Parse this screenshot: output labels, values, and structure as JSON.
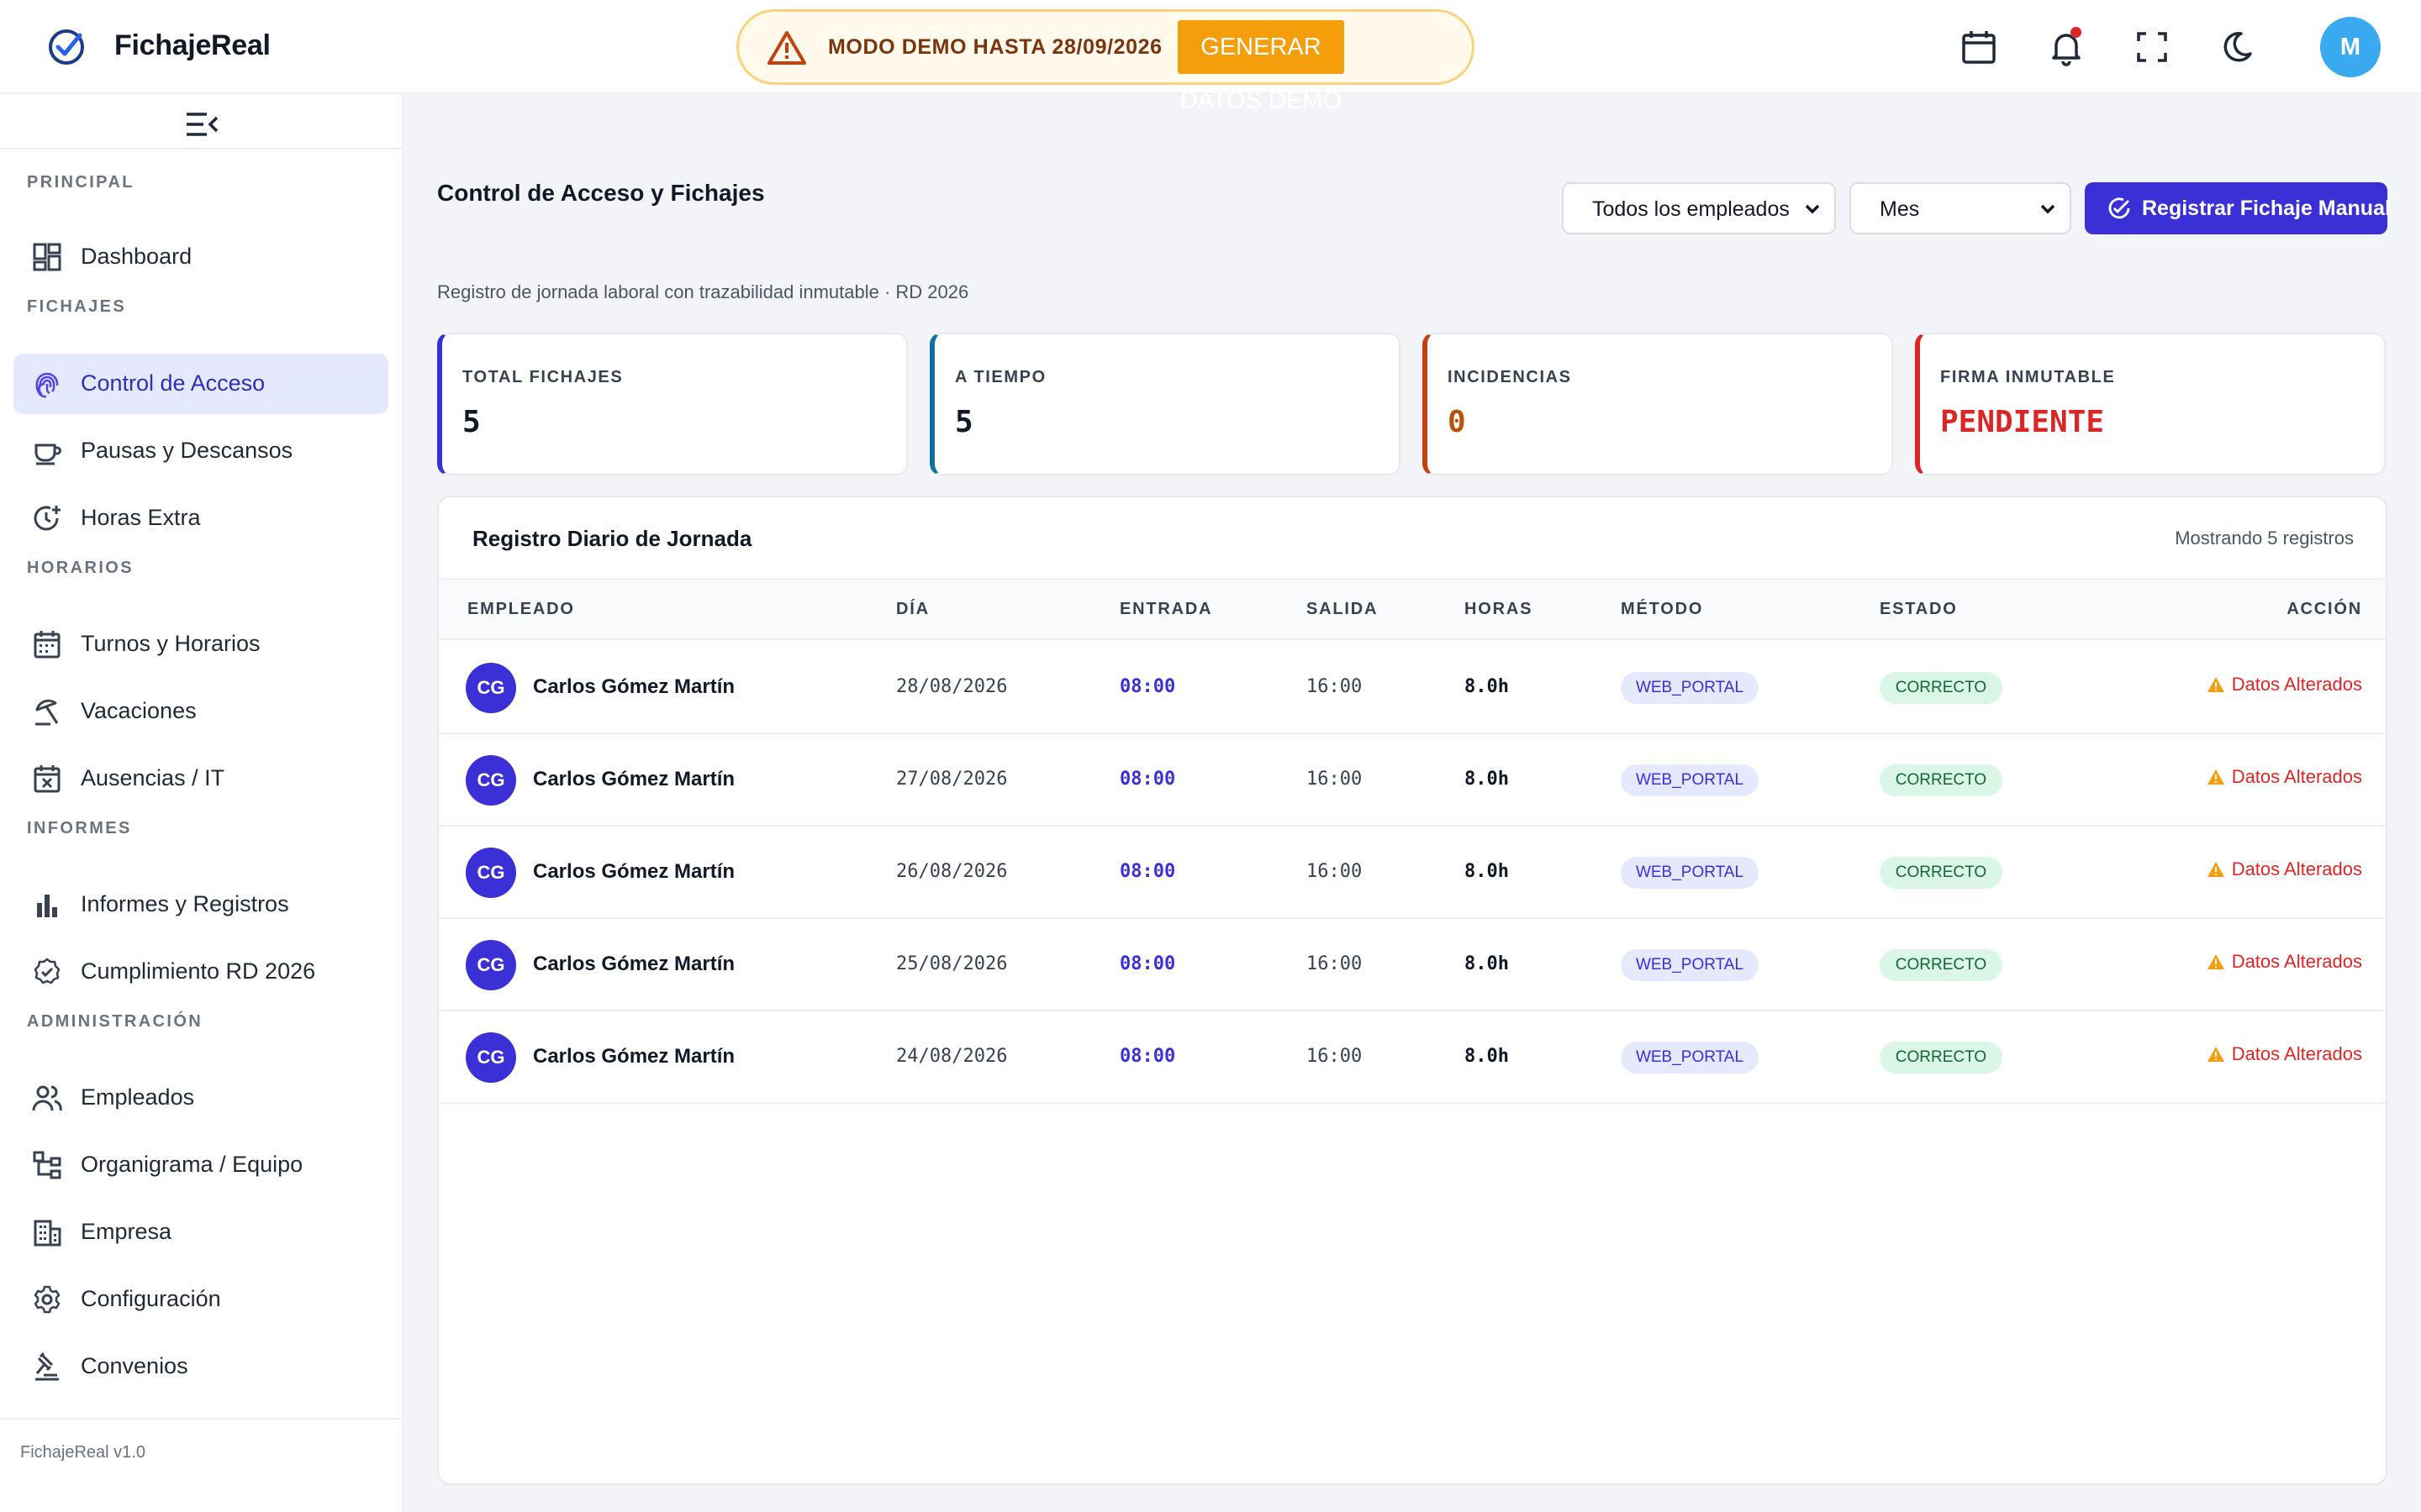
{
  "header": {
    "app_name": "FichajeReal",
    "demo_banner_text": "MODO DEMO HASTA 28/09/2026",
    "demo_button_label": "GENERAR DATOS DEMO",
    "avatar_initial": "M",
    "icons": [
      "calendar-icon",
      "bell-icon",
      "fullscreen-icon",
      "moon-icon"
    ]
  },
  "sidebar": {
    "sections": [
      {
        "label": "PRINCIPAL",
        "items": [
          {
            "label": "Dashboard",
            "icon": "dashboard-icon"
          }
        ]
      },
      {
        "label": "FICHAJES",
        "items": [
          {
            "label": "Control de Acceso",
            "icon": "fingerprint-icon",
            "active": true
          },
          {
            "label": "Pausas y Descansos",
            "icon": "coffee-icon"
          },
          {
            "label": "Horas Extra",
            "icon": "clock-plus-icon"
          }
        ]
      },
      {
        "label": "HORARIOS",
        "items": [
          {
            "label": "Turnos y Horarios",
            "icon": "calendar-grid-icon"
          },
          {
            "label": "Vacaciones",
            "icon": "umbrella-icon"
          },
          {
            "label": "Ausencias / IT",
            "icon": "calendar-x-icon"
          }
        ]
      },
      {
        "label": "INFORMES",
        "items": [
          {
            "label": "Informes y Registros",
            "icon": "bar-chart-icon"
          },
          {
            "label": "Cumplimiento RD 2026",
            "icon": "badge-check-icon"
          }
        ]
      },
      {
        "label": "ADMINISTRACIÓN",
        "items": [
          {
            "label": "Empleados",
            "icon": "users-icon"
          },
          {
            "label": "Organigrama / Equipo",
            "icon": "org-chart-icon"
          },
          {
            "label": "Empresa",
            "icon": "building-icon"
          },
          {
            "label": "Configuración",
            "icon": "gear-icon"
          },
          {
            "label": "Convenios",
            "icon": "gavel-icon"
          }
        ]
      }
    ],
    "version": "FichajeReal v1.0"
  },
  "main": {
    "title": "Control de Acceso y Fichajes",
    "subtitle": "Registro de jornada laboral con trazabilidad inmutable · RD 2026",
    "employee_filter": "Todos los empleados",
    "period_filter": "Mes",
    "register_button": "Registrar Fichaje Manual",
    "stats": [
      {
        "label": "TOTAL FICHAJES",
        "value": "5",
        "accent": "#3b2fd6",
        "value_color": "#111827"
      },
      {
        "label": "A TIEMPO",
        "value": "5",
        "accent": "#0e6fa0",
        "value_color": "#111827"
      },
      {
        "label": "INCIDENCIAS",
        "value": "0",
        "accent": "#c2410c",
        "value_color": "#b45309"
      },
      {
        "label": "FIRMA INMUTABLE",
        "value": "PENDIENTE",
        "accent": "#dc2626",
        "value_color": "#dc2626"
      }
    ]
  },
  "table": {
    "title": "Registro Diario de Jornada",
    "count_text": "Mostrando 5 registros",
    "columns": [
      "EMPLEADO",
      "DÍA",
      "ENTRADA",
      "SALIDA",
      "HORAS",
      "MÉTODO",
      "ESTADO",
      "ACCIÓN"
    ],
    "rows": [
      {
        "initials": "CG",
        "name": "Carlos Gómez Martín",
        "day": "28/08/2026",
        "entry": "08:00",
        "exit": "16:00",
        "hours": "8.0h",
        "method": "WEB_PORTAL",
        "status": "CORRECTO",
        "action": "Datos Alterados"
      },
      {
        "initials": "CG",
        "name": "Carlos Gómez Martín",
        "day": "27/08/2026",
        "entry": "08:00",
        "exit": "16:00",
        "hours": "8.0h",
        "method": "WEB_PORTAL",
        "status": "CORRECTO",
        "action": "Datos Alterados"
      },
      {
        "initials": "CG",
        "name": "Carlos Gómez Martín",
        "day": "26/08/2026",
        "entry": "08:00",
        "exit": "16:00",
        "hours": "8.0h",
        "method": "WEB_PORTAL",
        "status": "CORRECTO",
        "action": "Datos Alterados"
      },
      {
        "initials": "CG",
        "name": "Carlos Gómez Martín",
        "day": "25/08/2026",
        "entry": "08:00",
        "exit": "16:00",
        "hours": "8.0h",
        "method": "WEB_PORTAL",
        "status": "CORRECTO",
        "action": "Datos Alterados"
      },
      {
        "initials": "CG",
        "name": "Carlos Gómez Martín",
        "day": "24/08/2026",
        "entry": "08:00",
        "exit": "16:00",
        "hours": "8.0h",
        "method": "WEB_PORTAL",
        "status": "CORRECTO",
        "action": "Datos Alterados"
      }
    ]
  },
  "colors": {
    "primary": "#3b2fd6",
    "demo_accent": "#f59e0b",
    "danger": "#dc2626",
    "success_bg": "#d9f6e6"
  }
}
